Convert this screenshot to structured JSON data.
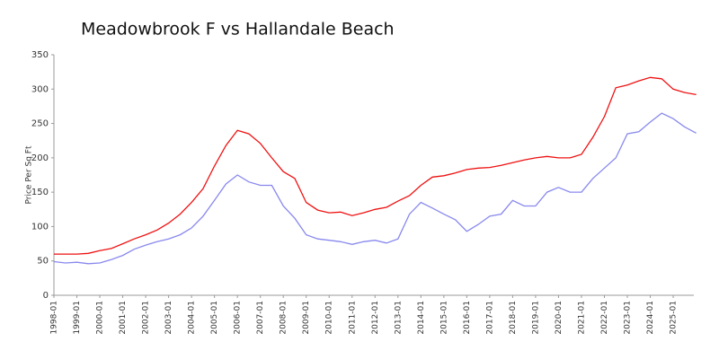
{
  "chart_data": {
    "type": "line",
    "title": "Meadowbrook F vs Hallandale Beach",
    "y_label": "Price Per Sq Ft",
    "categories": [
      "1998-01",
      null,
      "1999-01",
      null,
      "2000-01",
      null,
      "2001-01",
      null,
      "2002-01",
      null,
      "2003-01",
      null,
      "2004-01",
      null,
      "2005-01",
      null,
      "2006-01",
      null,
      "2007-01",
      null,
      "2008-01",
      null,
      "2009-01",
      null,
      "2010-01",
      null,
      "2011-01",
      null,
      "2012-01",
      null,
      "2013-01",
      null,
      "2014-01",
      null,
      "2015-01",
      null,
      "2016-01",
      null,
      "2017-01",
      null,
      "2018-01",
      null,
      "2019-01",
      null,
      "2020-01",
      null,
      "2021-01",
      null,
      "2022-01",
      null,
      "2023-01",
      null,
      "2024-01",
      null,
      "2025-01",
      null,
      null
    ],
    "series": [
      {
        "color": "#ee1111",
        "values": [
          60,
          60,
          60,
          61,
          65,
          68,
          75,
          82,
          88,
          95,
          105,
          118,
          135,
          155,
          188,
          218,
          240,
          235,
          221,
          200,
          180,
          170,
          135,
          124,
          120,
          121,
          116,
          120,
          125,
          128,
          137,
          145,
          160,
          172,
          174,
          178,
          183,
          185,
          186,
          189,
          193,
          197,
          200,
          202,
          200,
          200,
          205,
          230,
          260,
          302,
          306,
          312,
          317,
          315,
          300,
          295,
          292
        ]
      },
      {
        "color": "#8888ee",
        "values": [
          49,
          47,
          48,
          46,
          47,
          52,
          58,
          67,
          73,
          78,
          82,
          88,
          98,
          115,
          138,
          162,
          175,
          165,
          160,
          160,
          130,
          112,
          88,
          82,
          80,
          78,
          74,
          78,
          80,
          76,
          82,
          118,
          135,
          127,
          118,
          110,
          93,
          103,
          115,
          118,
          138,
          130,
          130,
          150,
          157,
          150,
          150,
          170,
          185,
          200,
          235,
          238,
          252,
          265,
          257,
          245,
          236
        ]
      }
    ],
    "ylim": [
      0,
      350
    ],
    "yticks": [
      0,
      50,
      100,
      150,
      200,
      250,
      300,
      350
    ]
  }
}
